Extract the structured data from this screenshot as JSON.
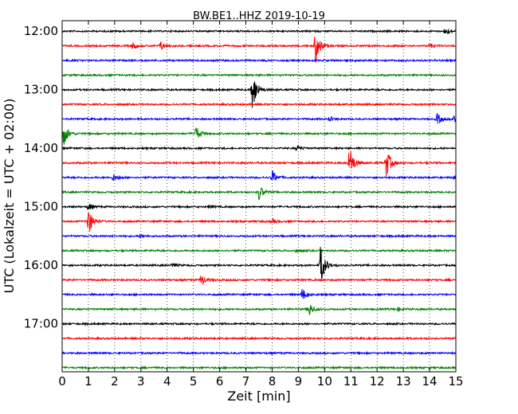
{
  "chart_data": {
    "type": "line",
    "title": "BW.BE1..HHZ 2019-10-19",
    "xlabel": "Zeit  [min]",
    "ylabel": "UTC (Lokalzeit = UTC + 02:00)",
    "xlim": [
      0,
      15
    ],
    "x_ticks": [
      0,
      1,
      2,
      3,
      4,
      5,
      6,
      7,
      8,
      9,
      10,
      11,
      12,
      13,
      14,
      15
    ],
    "y_ticks": [
      "12:00",
      "13:00",
      "14:00",
      "15:00",
      "16:00",
      "17:00"
    ],
    "grid": "vertical dotted lines at each minute",
    "trace_interval_min": 15,
    "colors": [
      "#000000",
      "#ff0000",
      "#0000ff",
      "#008000"
    ],
    "series": [
      {
        "start": "12:00",
        "color": "#000000",
        "events": [
          {
            "x": 14.6,
            "amp": 0.55
          }
        ]
      },
      {
        "start": "12:15",
        "color": "#ff0000",
        "events": [
          {
            "x": 2.7,
            "amp": 0.4
          },
          {
            "x": 3.75,
            "amp": 0.55
          },
          {
            "x": 9.65,
            "amp": 2.4
          },
          {
            "x": 14.0,
            "amp": 0.25
          }
        ]
      },
      {
        "start": "12:30",
        "color": "#0000ff",
        "events": []
      },
      {
        "start": "12:45",
        "color": "#008000",
        "events": []
      },
      {
        "start": "13:00",
        "color": "#000000",
        "events": [
          {
            "x": 7.25,
            "amp": 2.8
          }
        ]
      },
      {
        "start": "13:15",
        "color": "#ff0000",
        "events": []
      },
      {
        "start": "13:30",
        "color": "#0000ff",
        "events": [
          {
            "x": 10.2,
            "amp": 0.3
          },
          {
            "x": 14.3,
            "amp": 0.7
          },
          {
            "x": 14.95,
            "amp": 0.9
          }
        ]
      },
      {
        "start": "13:45",
        "color": "#008000",
        "events": [
          {
            "x": 0.05,
            "amp": 1.6
          },
          {
            "x": 5.1,
            "amp": 0.9
          }
        ]
      },
      {
        "start": "14:00",
        "color": "#000000",
        "events": [
          {
            "x": 8.95,
            "amp": 0.35
          }
        ]
      },
      {
        "start": "14:15",
        "color": "#ff0000",
        "events": [
          {
            "x": 10.95,
            "amp": 2.2
          },
          {
            "x": 12.35,
            "amp": 1.9
          }
        ]
      },
      {
        "start": "14:30",
        "color": "#0000ff",
        "events": [
          {
            "x": 1.95,
            "amp": 0.45
          },
          {
            "x": 8.0,
            "amp": 0.9
          },
          {
            "x": 14.95,
            "amp": 0.25
          }
        ]
      },
      {
        "start": "14:45",
        "color": "#008000",
        "events": [
          {
            "x": 7.5,
            "amp": 1.0
          }
        ]
      },
      {
        "start": "15:00",
        "color": "#000000",
        "events": [
          {
            "x": 1.0,
            "amp": 0.5
          },
          {
            "x": 5.6,
            "amp": 0.2
          }
        ]
      },
      {
        "start": "15:15",
        "color": "#ff0000",
        "events": [
          {
            "x": 1.0,
            "amp": 1.7
          },
          {
            "x": 8.0,
            "amp": 0.3
          }
        ]
      },
      {
        "start": "15:30",
        "color": "#0000ff",
        "events": [
          {
            "x": 3.0,
            "amp": 0.2
          }
        ]
      },
      {
        "start": "15:45",
        "color": "#008000",
        "events": [
          {
            "x": 8.9,
            "amp": 0.2
          }
        ]
      },
      {
        "start": "16:00",
        "color": "#000000",
        "events": [
          {
            "x": 4.2,
            "amp": 0.3
          },
          {
            "x": 9.85,
            "amp": 2.6
          }
        ]
      },
      {
        "start": "16:15",
        "color": "#ff0000",
        "events": [
          {
            "x": 5.3,
            "amp": 0.7
          }
        ]
      },
      {
        "start": "16:30",
        "color": "#0000ff",
        "events": [
          {
            "x": 9.15,
            "amp": 0.8
          }
        ]
      },
      {
        "start": "16:45",
        "color": "#008000",
        "events": [
          {
            "x": 9.4,
            "amp": 0.9
          },
          {
            "x": 12.8,
            "amp": 0.2
          }
        ]
      },
      {
        "start": "17:00",
        "color": "#000000",
        "events": []
      },
      {
        "start": "17:15",
        "color": "#ff0000",
        "events": []
      },
      {
        "start": "17:30",
        "color": "#0000ff",
        "events": []
      },
      {
        "start": "17:45",
        "color": "#008000",
        "events": []
      }
    ]
  }
}
